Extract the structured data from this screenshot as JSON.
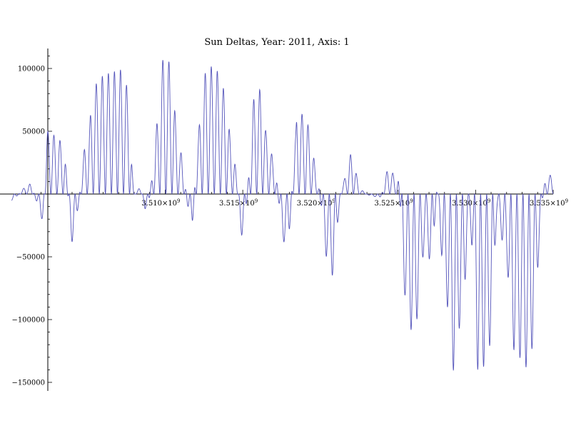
{
  "chart_data": {
    "type": "line",
    "title": "Sun Deltas, Year: 2011, Axis: 1",
    "xlabel": "",
    "ylabel": "",
    "xlim": [
      3500000000,
      3535000000
    ],
    "ylim": [
      -155000,
      115000
    ],
    "grid": false,
    "legend": "none",
    "x_ticks": [
      {
        "value": 3510000000,
        "label": "3.510×10",
        "exp": "9"
      },
      {
        "value": 3515000000,
        "label": "3.515×10",
        "exp": "9"
      },
      {
        "value": 3520000000,
        "label": "3.520×10",
        "exp": "9"
      },
      {
        "value": 3525000000,
        "label": "3.525×10",
        "exp": "9"
      },
      {
        "value": 3530000000,
        "label": "3.530×10",
        "exp": "9"
      },
      {
        "value": 3535000000,
        "label": "3.535×10",
        "exp": "9"
      }
    ],
    "y_ticks": [
      {
        "value": 100000,
        "label": "100000"
      },
      {
        "value": 50000,
        "label": "50000"
      },
      {
        "value": -50000,
        "label": "−50000"
      },
      {
        "value": -100000,
        "label": "−100000"
      },
      {
        "value": -150000,
        "label": "−150000"
      }
    ],
    "series": [
      {
        "color": "#5555bb",
        "x": [
          3500100000,
          3501000000,
          3501300000,
          3502100000,
          3502400000,
          3503400000,
          3504000000,
          3505000000,
          3505400000,
          3506200000,
          3507200000,
          3507600000,
          3508000000,
          3508400000,
          3508800000,
          3509600000,
          3509700000,
          3510200000,
          3511000000,
          3511700000,
          3512100000,
          3512500000,
          3512800000,
          3513200000,
          3513800000,
          3514300000,
          3515000000,
          3515800000,
          3516200000,
          3516500000,
          3517000000,
          3517600000,
          3517900000,
          3518400000,
          3518500000,
          3519100000,
          3519400000,
          3519800000,
          3520400000,
          3520800000,
          3521400000,
          3522000000,
          3522600000,
          3523200000,
          3523800000,
          3524400000,
          3525000000,
          3525400000,
          3526000000,
          3526800000,
          3527200000,
          3527500000,
          3528000000,
          3528600000,
          3529200000,
          3529600000,
          3529800000,
          3530200000,
          3531000000,
          3531400000,
          3532000000,
          3532400000,
          3533400000,
          3534600000
        ],
        "y": [
          -5000,
          5000,
          8000,
          -20000,
          50000,
          42000,
          -38000,
          45000,
          87000,
          96000,
          99000,
          85000,
          0,
          5000,
          -15000,
          62000,
          107000,
          106000,
          33000,
          -28000,
          48000,
          95000,
          102000,
          101000,
          84000,
          40000,
          -35000,
          80000,
          84000,
          50000,
          28000,
          -38000,
          -40000,
          47000,
          68000,
          60000,
          42000,
          12000,
          -50000,
          -65000,
          8000,
          32000,
          3000,
          -1000,
          -3000,
          20000,
          12000,
          -80000,
          -114000,
          -40000,
          -61000,
          3000,
          -75000,
          -141000,
          -88000,
          -15000,
          -45000,
          -147000,
          -120000,
          -15000,
          -58000,
          -124000,
          -139000,
          15000
        ]
      }
    ]
  }
}
